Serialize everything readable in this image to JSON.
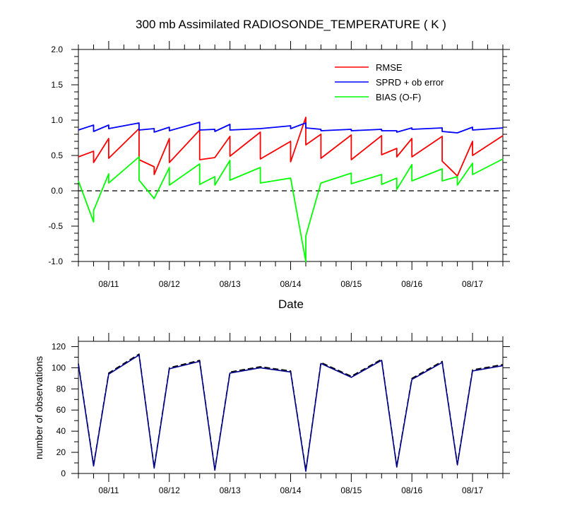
{
  "chart_data": [
    {
      "type": "line",
      "title": "300 mb Assimilated RADIOSONDE_TEMPERATURE ( K )",
      "xlabel": "Date",
      "ylabel": "",
      "x_tick_labels": [
        "08/11",
        "08/12",
        "08/13",
        "08/14",
        "08/15",
        "08/16",
        "08/17"
      ],
      "y_tick_labels": [
        "2.0",
        "1.5",
        "1.0",
        "0.5",
        "0.0",
        "-0.5",
        "-1.0"
      ],
      "ylim": [
        -1.0,
        2.0
      ],
      "xlim_days": [
        "08/10 12:00",
        "08/17 12:00"
      ],
      "zero_line": "dashed",
      "legend_position": "top-right",
      "grid": false,
      "series": [
        {
          "name": "RMSE",
          "color": "#ff0000",
          "points": [
            [
              "08/10 12:00",
              0.48
            ],
            [
              "08/10 18:00",
              0.56
            ],
            [
              "08/10 18:00",
              0.4
            ],
            [
              "08/11 00:00",
              0.74
            ],
            [
              "08/11 00:00",
              0.46
            ],
            [
              "08/11 12:00",
              0.88
            ],
            [
              "08/11 12:00",
              0.44
            ],
            [
              "08/11 18:00",
              0.34
            ],
            [
              "08/11 18:00",
              0.23
            ],
            [
              "08/12 00:00",
              0.74
            ],
            [
              "08/12 00:00",
              0.4
            ],
            [
              "08/12 12:00",
              0.86
            ],
            [
              "08/12 12:00",
              0.44
            ],
            [
              "08/12 18:00",
              0.47
            ],
            [
              "08/13 00:00",
              0.77
            ],
            [
              "08/13 00:00",
              0.49
            ],
            [
              "08/13 12:00",
              0.83
            ],
            [
              "08/13 12:00",
              0.45
            ],
            [
              "08/14 00:00",
              0.7
            ],
            [
              "08/14 00:00",
              0.41
            ],
            [
              "08/14 06:00",
              1.04
            ],
            [
              "08/14 06:00",
              0.65
            ],
            [
              "08/14 12:00",
              0.8
            ],
            [
              "08/14 12:00",
              0.46
            ],
            [
              "08/15 00:00",
              0.79
            ],
            [
              "08/15 00:00",
              0.44
            ],
            [
              "08/15 12:00",
              0.78
            ],
            [
              "08/15 12:00",
              0.51
            ],
            [
              "08/15 18:00",
              0.6
            ],
            [
              "08/15 18:00",
              0.48
            ],
            [
              "08/16 00:00",
              0.74
            ],
            [
              "08/16 00:00",
              0.48
            ],
            [
              "08/16 12:00",
              0.77
            ],
            [
              "08/16 12:00",
              0.42
            ],
            [
              "08/16 18:00",
              0.21
            ],
            [
              "08/17 00:00",
              0.7
            ],
            [
              "08/17 00:00",
              0.5
            ],
            [
              "08/17 12:00",
              0.78
            ]
          ]
        },
        {
          "name": "SPRD + ob error",
          "color": "#0000ff",
          "points": [
            [
              "08/10 12:00",
              0.86
            ],
            [
              "08/10 18:00",
              0.93
            ],
            [
              "08/10 18:00",
              0.84
            ],
            [
              "08/11 00:00",
              0.93
            ],
            [
              "08/11 00:00",
              0.88
            ],
            [
              "08/11 12:00",
              0.96
            ],
            [
              "08/11 12:00",
              0.86
            ],
            [
              "08/11 18:00",
              0.88
            ],
            [
              "08/11 18:00",
              0.83
            ],
            [
              "08/12 00:00",
              0.9
            ],
            [
              "08/12 00:00",
              0.85
            ],
            [
              "08/12 12:00",
              0.97
            ],
            [
              "08/12 12:00",
              0.86
            ],
            [
              "08/12 18:00",
              0.87
            ],
            [
              "08/12 18:00",
              0.84
            ],
            [
              "08/13 00:00",
              0.94
            ],
            [
              "08/13 00:00",
              0.86
            ],
            [
              "08/13 12:00",
              0.88
            ],
            [
              "08/14 00:00",
              0.92
            ],
            [
              "08/14 00:00",
              0.88
            ],
            [
              "08/14 06:00",
              0.96
            ],
            [
              "08/14 06:00",
              0.89
            ],
            [
              "08/14 12:00",
              0.87
            ],
            [
              "08/14 12:00",
              0.85
            ],
            [
              "08/15 00:00",
              0.87
            ],
            [
              "08/15 00:00",
              0.85
            ],
            [
              "08/15 12:00",
              0.87
            ],
            [
              "08/15 12:00",
              0.85
            ],
            [
              "08/15 18:00",
              0.85
            ],
            [
              "08/15 18:00",
              0.83
            ],
            [
              "08/16 00:00",
              0.89
            ],
            [
              "08/16 00:00",
              0.87
            ],
            [
              "08/16 12:00",
              0.89
            ],
            [
              "08/16 12:00",
              0.84
            ],
            [
              "08/16 18:00",
              0.82
            ],
            [
              "08/17 00:00",
              0.9
            ],
            [
              "08/17 00:00",
              0.86
            ],
            [
              "08/17 12:00",
              0.89
            ]
          ]
        },
        {
          "name": "BIAS (O-F)",
          "color": "#00ff00",
          "points": [
            [
              "08/10 12:00",
              0.14
            ],
            [
              "08/10 18:00",
              -0.44
            ],
            [
              "08/10 18:00",
              -0.28
            ],
            [
              "08/11 00:00",
              0.24
            ],
            [
              "08/11 00:00",
              0.11
            ],
            [
              "08/11 12:00",
              0.48
            ],
            [
              "08/11 12:00",
              0.15
            ],
            [
              "08/11 18:00",
              -0.11
            ],
            [
              "08/12 00:00",
              0.33
            ],
            [
              "08/12 00:00",
              0.08
            ],
            [
              "08/12 12:00",
              0.38
            ],
            [
              "08/12 12:00",
              0.09
            ],
            [
              "08/12 18:00",
              0.2
            ],
            [
              "08/12 18:00",
              0.08
            ],
            [
              "08/13 00:00",
              0.43
            ],
            [
              "08/13 00:00",
              0.15
            ],
            [
              "08/13 12:00",
              0.33
            ],
            [
              "08/13 12:00",
              0.11
            ],
            [
              "08/14 00:00",
              0.18
            ],
            [
              "08/14 06:00",
              -1.0
            ],
            [
              "08/14 06:00",
              -0.64
            ],
            [
              "08/14 12:00",
              0.11
            ],
            [
              "08/15 00:00",
              0.25
            ],
            [
              "08/15 00:00",
              0.1
            ],
            [
              "08/15 12:00",
              0.23
            ],
            [
              "08/15 12:00",
              0.09
            ],
            [
              "08/15 18:00",
              0.18
            ],
            [
              "08/15 18:00",
              0.02
            ],
            [
              "08/16 00:00",
              0.37
            ],
            [
              "08/16 00:00",
              0.14
            ],
            [
              "08/16 12:00",
              0.31
            ],
            [
              "08/16 12:00",
              0.14
            ],
            [
              "08/16 18:00",
              0.2
            ],
            [
              "08/16 18:00",
              0.08
            ],
            [
              "08/17 00:00",
              0.39
            ],
            [
              "08/17 00:00",
              0.23
            ],
            [
              "08/17 12:00",
              0.45
            ]
          ]
        }
      ]
    },
    {
      "type": "line",
      "title": "",
      "xlabel": "",
      "ylabel": "number of observations",
      "x_tick_labels": [
        "08/11",
        "08/12",
        "08/13",
        "08/14",
        "08/15",
        "08/16",
        "08/17"
      ],
      "y_tick_labels": [
        "120",
        "100",
        "80",
        "60",
        "40",
        "20",
        "0"
      ],
      "ylim": [
        0,
        125
      ],
      "xlim_days": [
        "08/10 12:00",
        "08/17 12:00"
      ],
      "grid": false,
      "series": [
        {
          "line_style": "dashed",
          "color": "#000000",
          "points": [
            [
              "08/10 12:00",
              104
            ],
            [
              "08/10 18:00",
              8
            ],
            [
              "08/11 00:00",
              95
            ],
            [
              "08/11 12:00",
              113
            ],
            [
              "08/11 18:00",
              6
            ],
            [
              "08/12 00:00",
              100
            ],
            [
              "08/12 12:00",
              107
            ],
            [
              "08/12 18:00",
              4
            ],
            [
              "08/13 00:00",
              96
            ],
            [
              "08/13 12:00",
              101
            ],
            [
              "08/14 00:00",
              97
            ],
            [
              "08/14 06:00",
              3
            ],
            [
              "08/14 12:00",
              105
            ],
            [
              "08/15 00:00",
              92
            ],
            [
              "08/15 12:00",
              108
            ],
            [
              "08/15 18:00",
              7
            ],
            [
              "08/16 00:00",
              90
            ],
            [
              "08/16 12:00",
              106
            ],
            [
              "08/16 18:00",
              9
            ],
            [
              "08/17 00:00",
              98
            ],
            [
              "08/17 12:00",
              103
            ]
          ]
        },
        {
          "line_style": "solid",
          "color": "#00008b",
          "points": [
            [
              "08/10 12:00",
              103
            ],
            [
              "08/10 18:00",
              7
            ],
            [
              "08/11 00:00",
              94
            ],
            [
              "08/11 12:00",
              112
            ],
            [
              "08/11 18:00",
              5
            ],
            [
              "08/12 00:00",
              99
            ],
            [
              "08/12 12:00",
              106
            ],
            [
              "08/12 18:00",
              3
            ],
            [
              "08/13 00:00",
              95
            ],
            [
              "08/13 12:00",
              100
            ],
            [
              "08/14 00:00",
              96
            ],
            [
              "08/14 06:00",
              2
            ],
            [
              "08/14 12:00",
              104
            ],
            [
              "08/15 00:00",
              91
            ],
            [
              "08/15 12:00",
              107
            ],
            [
              "08/15 18:00",
              6
            ],
            [
              "08/16 00:00",
              89
            ],
            [
              "08/16 12:00",
              105
            ],
            [
              "08/16 18:00",
              8
            ],
            [
              "08/17 00:00",
              97
            ],
            [
              "08/17 12:00",
              102
            ]
          ]
        }
      ]
    }
  ]
}
